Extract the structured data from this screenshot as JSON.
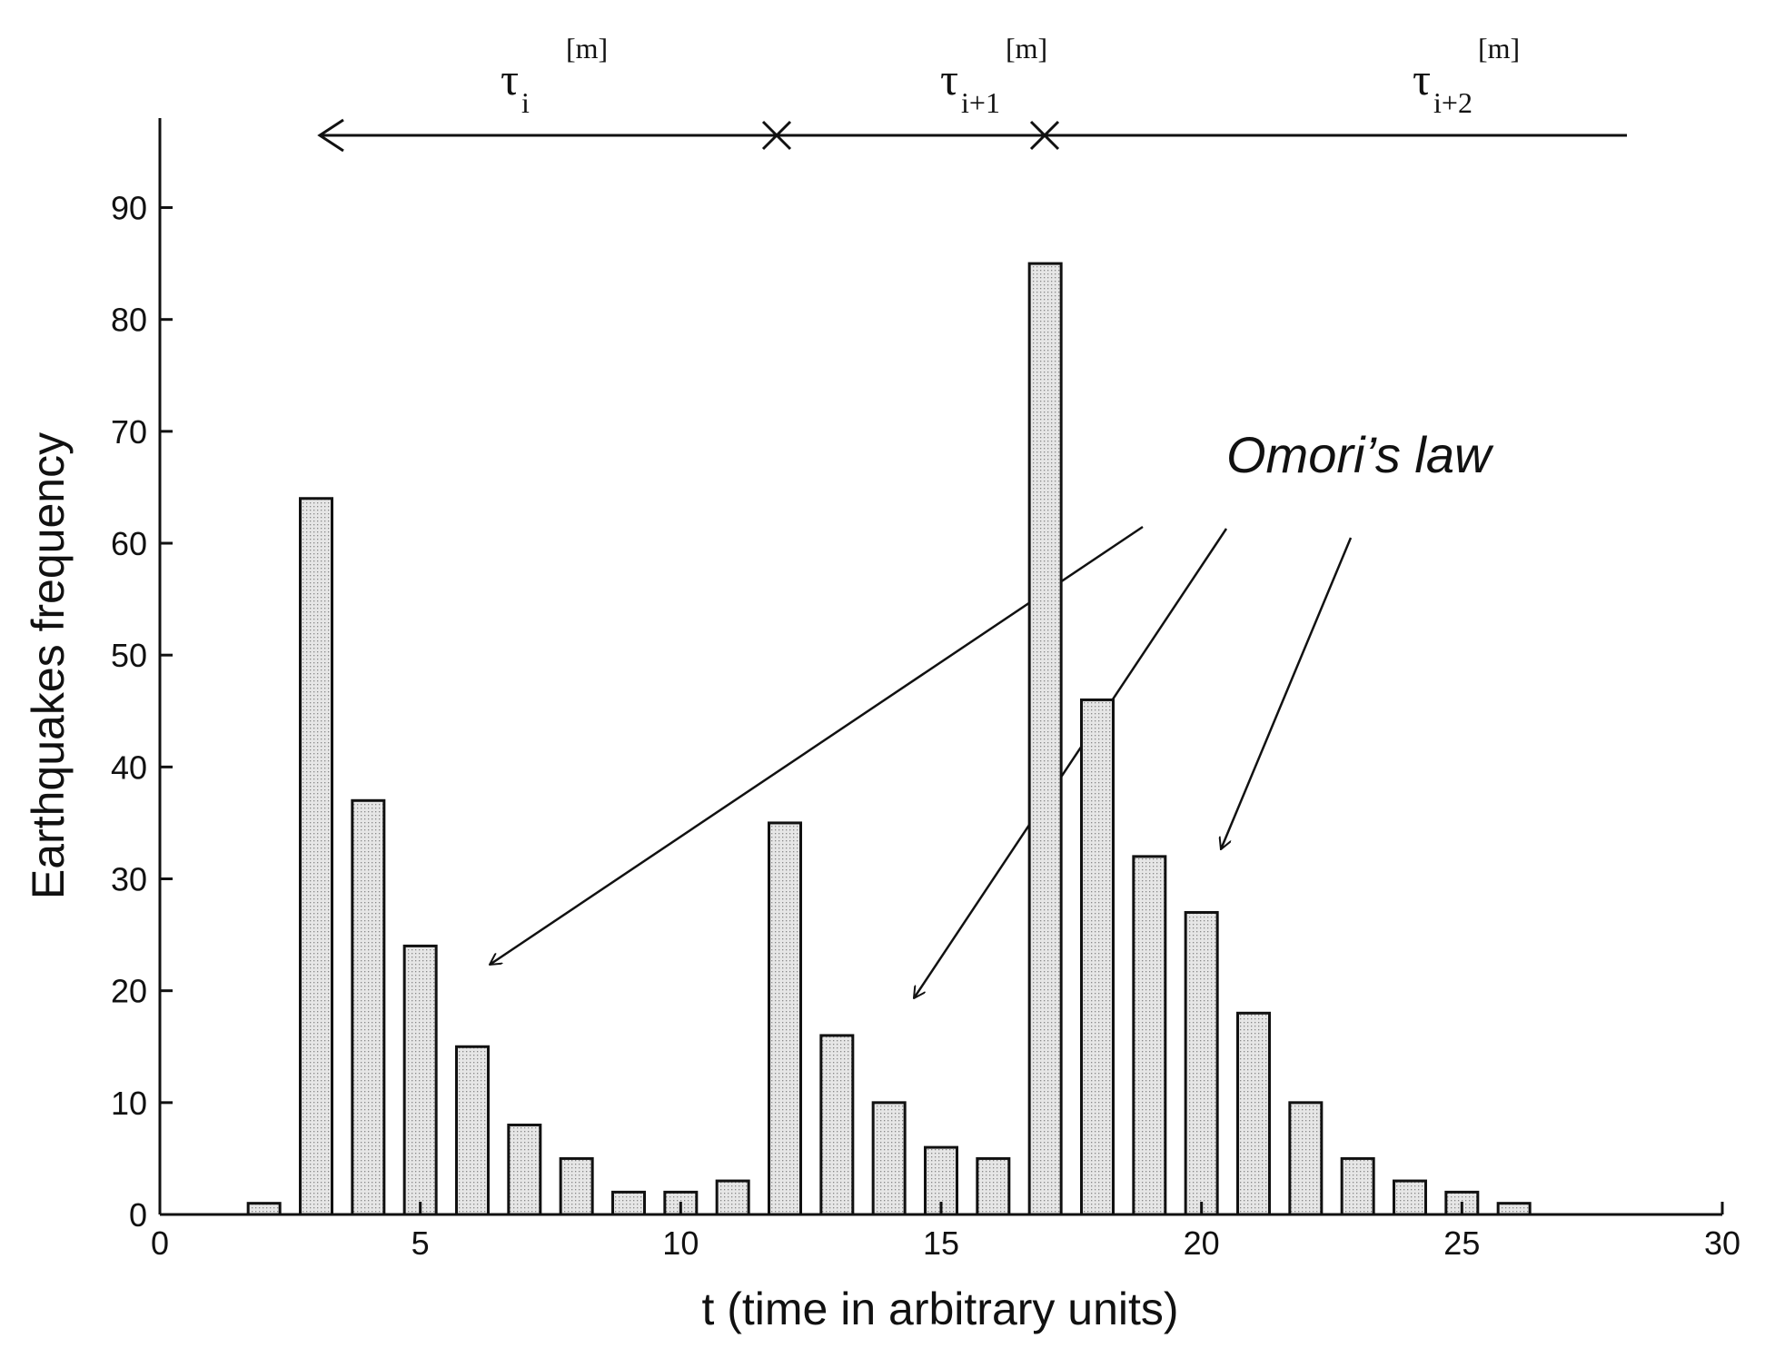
{
  "chart_data": {
    "type": "bar",
    "x_label": "t (time in arbitrary units)",
    "y_label": "Earthquakes  frequency",
    "x": [
      2,
      3,
      4,
      5,
      6,
      7,
      8,
      9,
      10,
      11,
      12,
      13,
      14,
      15,
      16,
      17,
      18,
      19,
      20,
      21,
      22,
      23,
      24,
      25,
      26
    ],
    "values": [
      1,
      64,
      37,
      24,
      15,
      8,
      5,
      2,
      2,
      3,
      35,
      16,
      10,
      6,
      5,
      85,
      46,
      32,
      27,
      18,
      10,
      5,
      3,
      2,
      1
    ],
    "color": "#d9d9d9",
    "xlim": [
      0,
      30
    ],
    "xticks": [
      0,
      5,
      10,
      15,
      20,
      25,
      30
    ],
    "ylim": [
      0,
      98
    ],
    "yticks": [
      0,
      10,
      20,
      30,
      40,
      50,
      60,
      70,
      80,
      90
    ],
    "grid": false,
    "annotations": {
      "intervals": [
        {
          "symbol": "τ",
          "sub": "i",
          "sup": "[m]"
        },
        {
          "symbol": "τ",
          "sub": "i+1",
          "sup": "[m]"
        },
        {
          "symbol": "τ",
          "sub": "i+2",
          "sup": "[m]"
        }
      ],
      "note": "Omori’s law"
    }
  }
}
